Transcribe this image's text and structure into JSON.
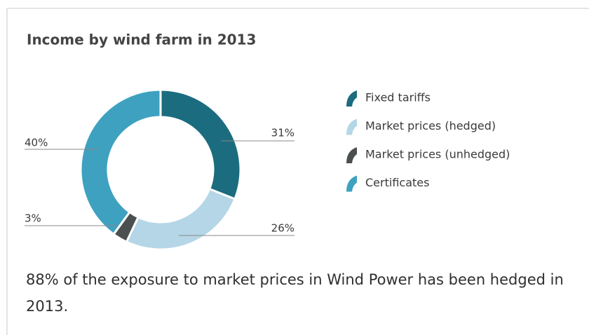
{
  "chart_data": {
    "type": "donut",
    "title": "Income by wind farm in 2013",
    "categories": [
      "Fixed tariffs",
      "Market prices (hedged)",
      "Market prices (unhedged)",
      "Certificates"
    ],
    "values": [
      31,
      26,
      3,
      40
    ],
    "value_labels": [
      "31%",
      "26%",
      "3%",
      "40%"
    ],
    "colors": [
      "#1b6c7e",
      "#b5d6e6",
      "#4b4f50",
      "#3fa1c0"
    ],
    "note": "88% of the exposure to market prices in Wind Power has been hedged in 2013."
  }
}
